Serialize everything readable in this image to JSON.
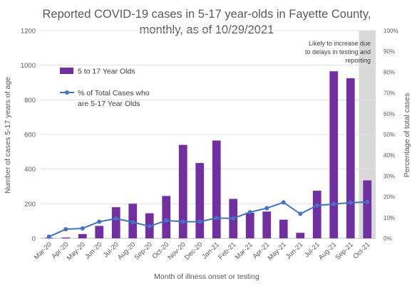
{
  "chart_data": {
    "type": "bar",
    "title_line1": "Reported COVID-19 cases in 5-17 year-olds in Fayette County,",
    "title_line2": "monthly, as of 10/29/2021",
    "xlabel": "Month of illness onset or testing",
    "ylabel": "Number of cases 5-17 years of age",
    "y2label": "Percentage of total cases",
    "categories": [
      "Mar-20",
      "Apr-20",
      "May-20",
      "Jun-20",
      "Jul-20",
      "Aug-20",
      "Sep-20",
      "Oct-20",
      "Nov-20",
      "Dec-20",
      "Jan-21",
      "Feb-21",
      "Mar-21",
      "Apr-21",
      "May-21",
      "Jun-21",
      "Jul-21",
      "Aug-21",
      "Sep-21",
      "Oct-21"
    ],
    "ylim": [
      0,
      1200
    ],
    "y2lim": [
      0,
      100
    ],
    "yticks": [
      "0",
      "200",
      "400",
      "600",
      "800",
      "1000",
      "1200"
    ],
    "y2ticks": [
      "0%",
      "10%",
      "20%",
      "30%",
      "40%",
      "50%",
      "60%",
      "70%",
      "80%",
      "90%",
      "100%"
    ],
    "series": [
      {
        "name": "5 to 17 Year Olds",
        "type": "bar",
        "color": "#7030a0",
        "values": [
          3,
          5,
          25,
          72,
          180,
          200,
          145,
          245,
          540,
          435,
          565,
          228,
          148,
          155,
          108,
          32,
          275,
          965,
          925,
          335
        ]
      },
      {
        "name": "% of Total Cases who are 5-17 Year Olds",
        "name_line1": "% of Total Cases who",
        "name_line2": "are 5-17 Year Olds",
        "type": "line",
        "axis": "secondary",
        "color": "#4472c4",
        "values": [
          0.8,
          4.4,
          4.8,
          8.0,
          9.5,
          7.8,
          5.8,
          8.6,
          8.0,
          8.0,
          9.8,
          9.6,
          12.6,
          14.5,
          17.3,
          11.8,
          15.8,
          16.5,
          17.2,
          17.5
        ]
      }
    ],
    "shaded_category": "Oct-21",
    "annotation_line1": "Likely to increase due",
    "annotation_line2": "to delays in testing and",
    "annotation_line3": "reporting",
    "legend_position": "left"
  }
}
